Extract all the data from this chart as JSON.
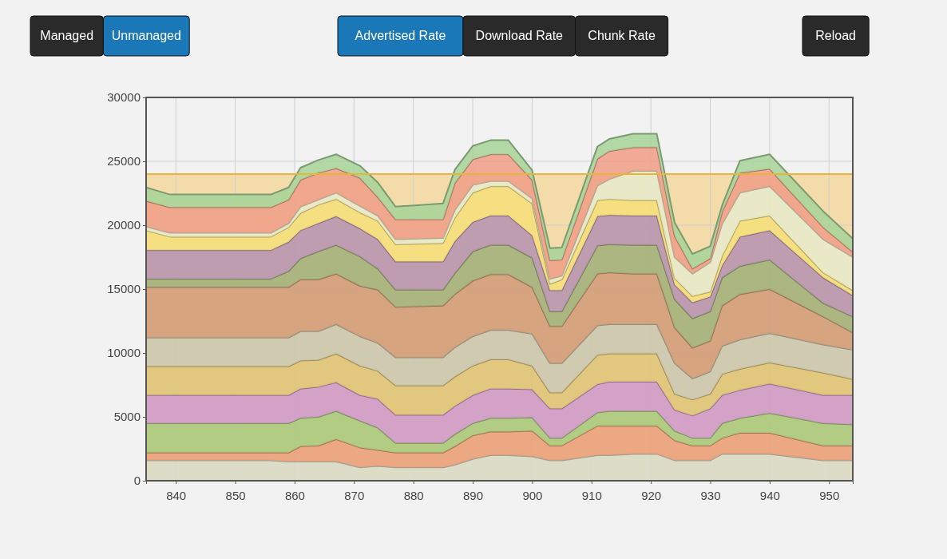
{
  "chart_data": {
    "type": "area",
    "stacked": true,
    "grid": true,
    "annotations": [
      "Managed",
      "Unmanaged",
      "Advertised Rate",
      "Download Rate",
      "Chunk Rate",
      "Reload"
    ],
    "xlim": [
      835,
      954
    ],
    "xticks": [
      840,
      850,
      860,
      870,
      880,
      890,
      900,
      910,
      920,
      930,
      940,
      950
    ],
    "ylim": [
      0,
      30000
    ],
    "yticks": [
      0,
      5000,
      10000,
      15000,
      20000,
      25000,
      30000
    ],
    "bands": [
      {
        "axis": "y",
        "from": 0,
        "to": 24000,
        "color": "#f3dcaa"
      }
    ],
    "ref_lines": [
      {
        "axis": "y",
        "value": 24000,
        "color": "#e8b53c"
      }
    ],
    "x": [
      835,
      839,
      856,
      859,
      861,
      864,
      867,
      871,
      874,
      877,
      885,
      887,
      890,
      893,
      896,
      900,
      903,
      905,
      911,
      913,
      917,
      921,
      924,
      927,
      930,
      932,
      935,
      940,
      949,
      954
    ],
    "series": [
      {
        "color": "#d8dccb",
        "values": [
          1600,
          1600,
          1600,
          1500,
          1500,
          1500,
          1500,
          1050,
          1150,
          1050,
          1050,
          1250,
          1700,
          2000,
          2000,
          1900,
          1600,
          1600,
          2000,
          2000,
          2100,
          2100,
          1600,
          1600,
          1600,
          2100,
          2100,
          2100,
          1600,
          1600
        ]
      },
      {
        "color": "#e9a07c",
        "values": [
          600,
          600,
          600,
          700,
          1200,
          1250,
          1750,
          1550,
          1250,
          1150,
          1150,
          1450,
          1850,
          1850,
          1850,
          2000,
          1150,
          1150,
          2300,
          2300,
          2200,
          2200,
          1550,
          1150,
          1150,
          1250,
          1650,
          1650,
          1150,
          1150
        ]
      },
      {
        "color": "#a8c97e",
        "values": [
          2300,
          2300,
          2300,
          2300,
          2200,
          2250,
          2200,
          2100,
          1750,
          750,
          750,
          950,
          950,
          1050,
          1050,
          1050,
          600,
          600,
          1050,
          1150,
          1150,
          1150,
          750,
          600,
          600,
          1150,
          1150,
          1550,
          1750,
          1650
        ]
      },
      {
        "color": "#cf9acb",
        "values": [
          2200,
          2200,
          2200,
          2200,
          2300,
          2350,
          2250,
          2000,
          2250,
          2200,
          2200,
          2200,
          2200,
          2300,
          2300,
          2200,
          2300,
          2300,
          2200,
          2300,
          2300,
          2300,
          1650,
          1750,
          2300,
          2200,
          2200,
          2300,
          2200,
          2300
        ]
      },
      {
        "color": "#dfc477",
        "values": [
          2250,
          2250,
          2250,
          2250,
          2200,
          2100,
          2250,
          2300,
          2200,
          2300,
          2300,
          2300,
          2300,
          2300,
          2300,
          1850,
          1250,
          1250,
          2300,
          2200,
          2200,
          2200,
          1250,
          1250,
          1150,
          1650,
          1650,
          1650,
          1750,
          1250
        ]
      },
      {
        "color": "#c9c7b1",
        "values": [
          2250,
          2250,
          2250,
          2250,
          2300,
          2250,
          2300,
          2300,
          2200,
          2200,
          2200,
          2300,
          2300,
          2300,
          2300,
          2500,
          2300,
          2300,
          2300,
          2300,
          2300,
          2300,
          2400,
          1650,
          1750,
          2200,
          2300,
          2300,
          2200,
          2300
        ]
      },
      {
        "color": "#d29d7a",
        "values": [
          3950,
          3950,
          3950,
          3950,
          4050,
          4050,
          3950,
          3950,
          4150,
          3950,
          4050,
          4150,
          4350,
          4350,
          4350,
          3650,
          2900,
          2900,
          4050,
          4050,
          3950,
          3950,
          2800,
          2400,
          2400,
          3150,
          3550,
          3450,
          2200,
          1350
        ]
      },
      {
        "color": "#a2b17a",
        "values": [
          650,
          650,
          650,
          1250,
          1650,
          2200,
          2250,
          2300,
          1650,
          1350,
          1250,
          1650,
          2300,
          2300,
          2300,
          2300,
          1150,
          1150,
          2200,
          2200,
          2250,
          2250,
          2200,
          2300,
          2300,
          2200,
          2200,
          2300,
          1050,
          1250
        ]
      },
      {
        "color": "#b794b0",
        "values": [
          2250,
          2250,
          2250,
          2300,
          2200,
          2200,
          2250,
          2200,
          2300,
          2200,
          2200,
          2500,
          2300,
          2300,
          2300,
          1750,
          1650,
          1650,
          2300,
          2300,
          2300,
          2300,
          1150,
          1250,
          1150,
          950,
          2300,
          2300,
          2000,
          1650
        ]
      },
      {
        "color": "#f5df7a",
        "values": [
          1550,
          1050,
          1050,
          1150,
          1350,
          1450,
          1350,
          1250,
          1450,
          1350,
          1450,
          1850,
          2300,
          2300,
          2300,
          2500,
          500,
          850,
          1250,
          1250,
          1200,
          1200,
          500,
          500,
          400,
          750,
          1250,
          1150,
          400,
          400
        ]
      },
      {
        "color": "#e7ebcc",
        "values": [
          300,
          300,
          300,
          300,
          500,
          400,
          500,
          500,
          400,
          400,
          400,
          600,
          600,
          400,
          400,
          400,
          400,
          300,
          1150,
          1550,
          2300,
          2300,
          1650,
          1750,
          2300,
          2500,
          2200,
          2300,
          2600,
          2600
        ]
      },
      {
        "color": "#ef9f88",
        "values": [
          2000,
          2000,
          2000,
          1850,
          2100,
          2100,
          1900,
          2200,
          1450,
          1550,
          1450,
          2100,
          2000,
          2100,
          2100,
          1450,
          1450,
          1250,
          2100,
          2200,
          1850,
          1850,
          1650,
          400,
          300,
          950,
          1550,
          1350,
          950,
          400
        ]
      },
      {
        "color": "#a9d49a",
        "values": [
          1050,
          1000,
          1000,
          950,
          950,
          1000,
          1100,
          950,
          1150,
          1000,
          1250,
          1050,
          1050,
          1100,
          1100,
          750,
          950,
          950,
          950,
          950,
          1050,
          1050,
          1050,
          1150,
          950,
          500,
          950,
          1150,
          1250,
          1050
        ]
      }
    ]
  }
}
